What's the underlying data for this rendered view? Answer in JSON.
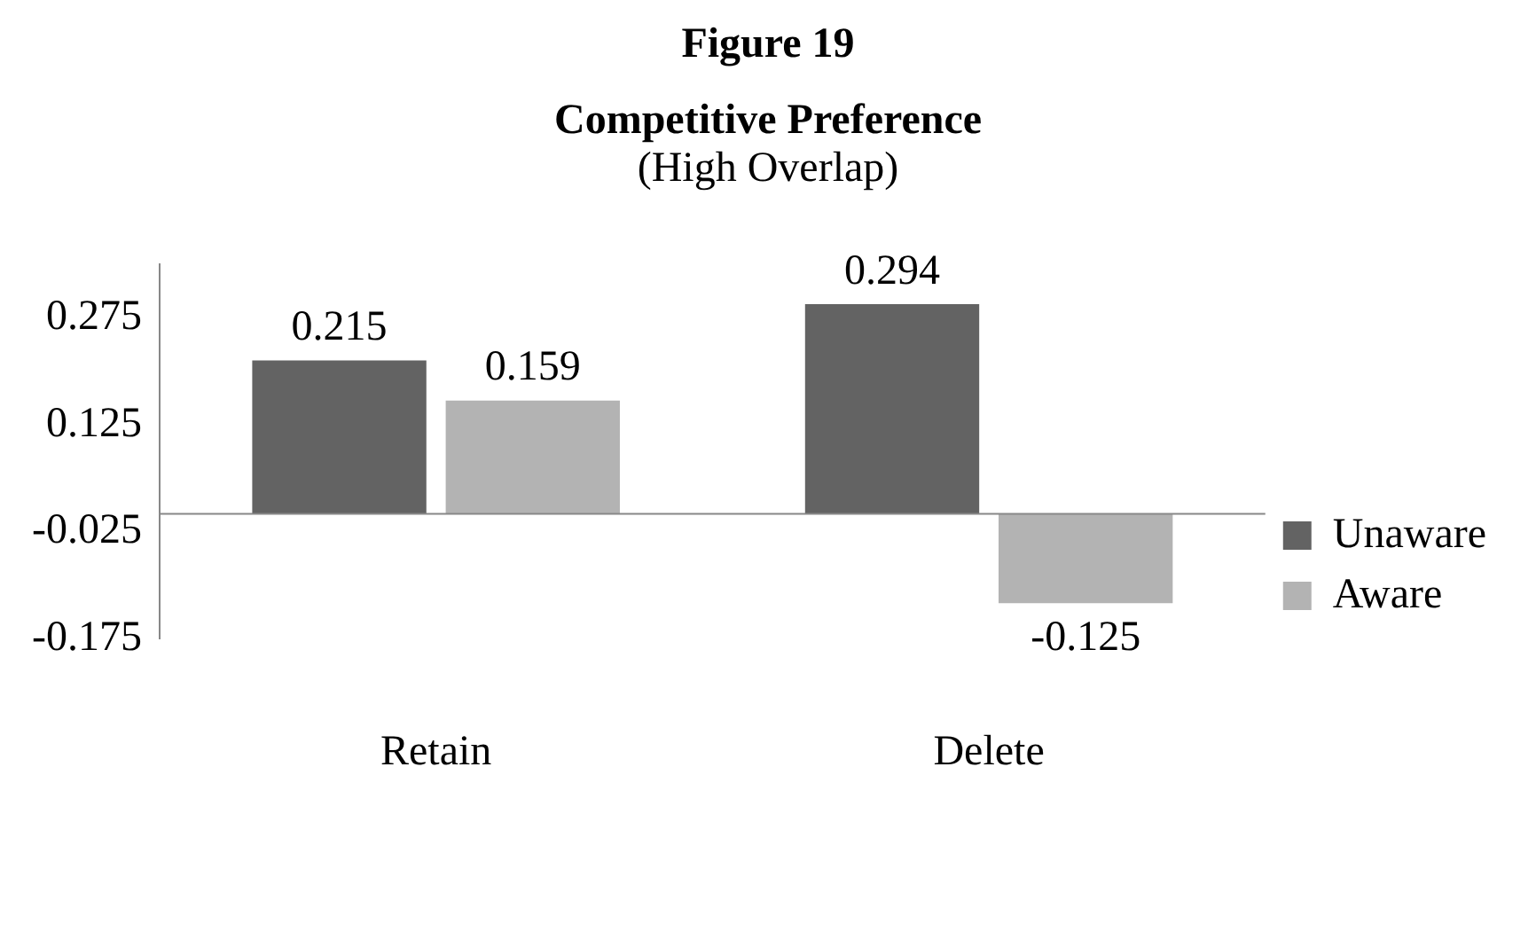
{
  "chart_data": {
    "type": "bar",
    "title": "Competitive Preference",
    "subtitle": "(High Overlap)",
    "annotations": [
      "Figure 19"
    ],
    "categories": [
      "Retain",
      "Delete"
    ],
    "series": [
      {
        "name": "Unaware",
        "color": "#636363",
        "values": [
          0.215,
          0.294
        ]
      },
      {
        "name": "Aware",
        "color": "#b3b3b3",
        "values": [
          0.159,
          -0.125
        ]
      }
    ],
    "ylim": [
      -0.175,
      0.35
    ],
    "yticks": [
      0.275,
      0.125,
      -0.025,
      -0.175
    ],
    "grid": false,
    "legend": "right",
    "data_labels": true
  }
}
